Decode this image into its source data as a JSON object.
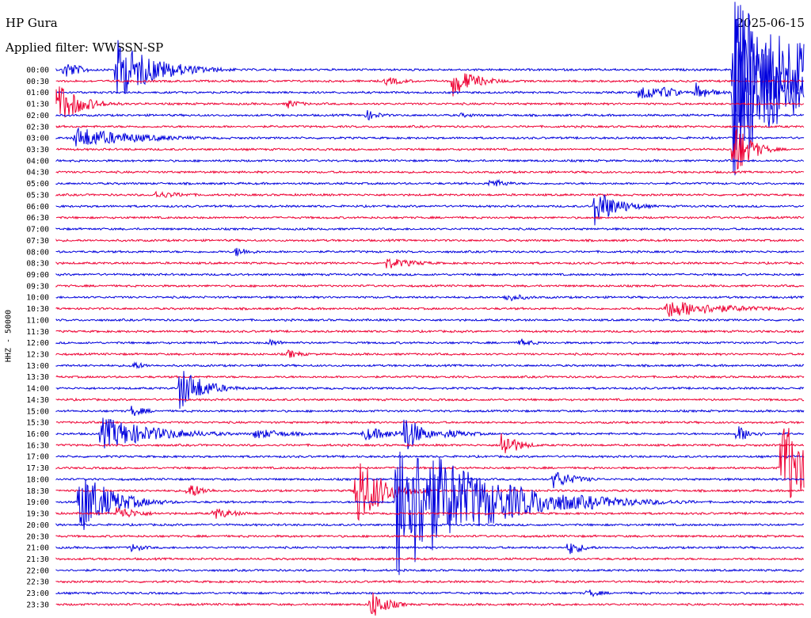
{
  "header": {
    "station": "HP Gura",
    "date": "2025-06-15",
    "filter": "Applied filter: WWSSN-SP"
  },
  "chart_data": {
    "type": "line",
    "title": "HP Gura",
    "subtitle": "Applied filter: WWSSN-SP",
    "ylabel": "HHZ - 50000",
    "colors": [
      "#0000dd",
      "#ee0033"
    ],
    "rows": [
      "00:00",
      "00:30",
      "01:00",
      "01:30",
      "02:00",
      "02:30",
      "03:00",
      "03:30",
      "04:00",
      "04:30",
      "05:00",
      "05:30",
      "06:00",
      "06:30",
      "07:00",
      "07:30",
      "08:00",
      "08:30",
      "09:00",
      "09:30",
      "10:00",
      "10:30",
      "11:00",
      "11:30",
      "12:00",
      "12:30",
      "13:00",
      "13:30",
      "14:00",
      "14:30",
      "15:00",
      "15:30",
      "16:00",
      "16:30",
      "17:00",
      "17:30",
      "18:00",
      "18:30",
      "19:00",
      "19:30",
      "20:00",
      "20:30",
      "21:00",
      "21:30",
      "22:00",
      "22:30",
      "23:00",
      "23:30"
    ],
    "events": [
      {
        "row": 0,
        "t": 0.01,
        "amp": 14,
        "dur": 0.02
      },
      {
        "row": 0,
        "t": 0.08,
        "amp": 40,
        "dur": 0.05
      },
      {
        "row": 0,
        "t": 0.905,
        "amp": 95,
        "dur": 0.09
      },
      {
        "row": 0,
        "t": 0.995,
        "amp": 55,
        "dur": 0.02
      },
      {
        "row": 1,
        "t": 0.44,
        "amp": 6,
        "dur": 0.03
      },
      {
        "row": 1,
        "t": 0.53,
        "amp": 20,
        "dur": 0.03
      },
      {
        "row": 2,
        "t": 0.78,
        "amp": 15,
        "dur": 0.02
      },
      {
        "row": 2,
        "t": 0.81,
        "amp": 10,
        "dur": 0.02
      },
      {
        "row": 2,
        "t": 0.855,
        "amp": 13,
        "dur": 0.02
      },
      {
        "row": 2,
        "t": 0.905,
        "amp": 110,
        "dur": 0.06
      },
      {
        "row": 3,
        "t": 0.0,
        "amp": 30,
        "dur": 0.03
      },
      {
        "row": 3,
        "t": 0.31,
        "amp": 6,
        "dur": 0.02
      },
      {
        "row": 4,
        "t": 0.415,
        "amp": 7,
        "dur": 0.02
      },
      {
        "row": 4,
        "t": 0.54,
        "amp": 3,
        "dur": 0.04
      },
      {
        "row": 6,
        "t": 0.025,
        "amp": 14,
        "dur": 0.08
      },
      {
        "row": 7,
        "t": 0.905,
        "amp": 45,
        "dur": 0.02
      },
      {
        "row": 10,
        "t": 0.58,
        "amp": 8,
        "dur": 0.02
      },
      {
        "row": 11,
        "t": 0.13,
        "amp": 5,
        "dur": 0.05
      },
      {
        "row": 12,
        "t": 0.72,
        "amp": 25,
        "dur": 0.03
      },
      {
        "row": 16,
        "t": 0.24,
        "amp": 7,
        "dur": 0.02
      },
      {
        "row": 17,
        "t": 0.44,
        "amp": 8,
        "dur": 0.04
      },
      {
        "row": 20,
        "t": 0.6,
        "amp": 6,
        "dur": 0.03
      },
      {
        "row": 21,
        "t": 0.815,
        "amp": 12,
        "dur": 0.08
      },
      {
        "row": 24,
        "t": 0.285,
        "amp": 5,
        "dur": 0.02
      },
      {
        "row": 24,
        "t": 0.62,
        "amp": 6,
        "dur": 0.02
      },
      {
        "row": 25,
        "t": 0.31,
        "amp": 6,
        "dur": 0.02
      },
      {
        "row": 26,
        "t": 0.1,
        "amp": 6,
        "dur": 0.02
      },
      {
        "row": 28,
        "t": 0.165,
        "amp": 30,
        "dur": 0.03
      },
      {
        "row": 30,
        "t": 0.1,
        "amp": 8,
        "dur": 0.02
      },
      {
        "row": 32,
        "t": 0.06,
        "amp": 22,
        "dur": 0.07
      },
      {
        "row": 32,
        "t": 0.265,
        "amp": 7,
        "dur": 0.05
      },
      {
        "row": 32,
        "t": 0.41,
        "amp": 9,
        "dur": 0.05
      },
      {
        "row": 32,
        "t": 0.465,
        "amp": 30,
        "dur": 0.02
      },
      {
        "row": 32,
        "t": 0.52,
        "amp": 6,
        "dur": 0.04
      },
      {
        "row": 32,
        "t": 0.91,
        "amp": 12,
        "dur": 0.02
      },
      {
        "row": 33,
        "t": 0.595,
        "amp": 20,
        "dur": 0.02
      },
      {
        "row": 35,
        "t": 0.97,
        "amp": 70,
        "dur": 0.03
      },
      {
        "row": 37,
        "t": 0.175,
        "amp": 12,
        "dur": 0.02
      },
      {
        "row": 37,
        "t": 0.4,
        "amp": 55,
        "dur": 0.03
      },
      {
        "row": 36,
        "t": 0.665,
        "amp": 12,
        "dur": 0.03
      },
      {
        "row": 38,
        "t": 0.03,
        "amp": 45,
        "dur": 0.04
      },
      {
        "row": 38,
        "t": 0.455,
        "amp": 100,
        "dur": 0.1
      },
      {
        "row": 38,
        "t": 0.715,
        "amp": 10,
        "dur": 0.02
      },
      {
        "row": 38,
        "t": 0.745,
        "amp": 8,
        "dur": 0.02
      },
      {
        "row": 39,
        "t": 0.08,
        "amp": 10,
        "dur": 0.03
      },
      {
        "row": 39,
        "t": 0.21,
        "amp": 8,
        "dur": 0.03
      },
      {
        "row": 42,
        "t": 0.1,
        "amp": 6,
        "dur": 0.02
      },
      {
        "row": 42,
        "t": 0.685,
        "amp": 10,
        "dur": 0.02
      },
      {
        "row": 46,
        "t": 0.71,
        "amp": 6,
        "dur": 0.02
      },
      {
        "row": 47,
        "t": 0.42,
        "amp": 22,
        "dur": 0.02
      }
    ]
  }
}
